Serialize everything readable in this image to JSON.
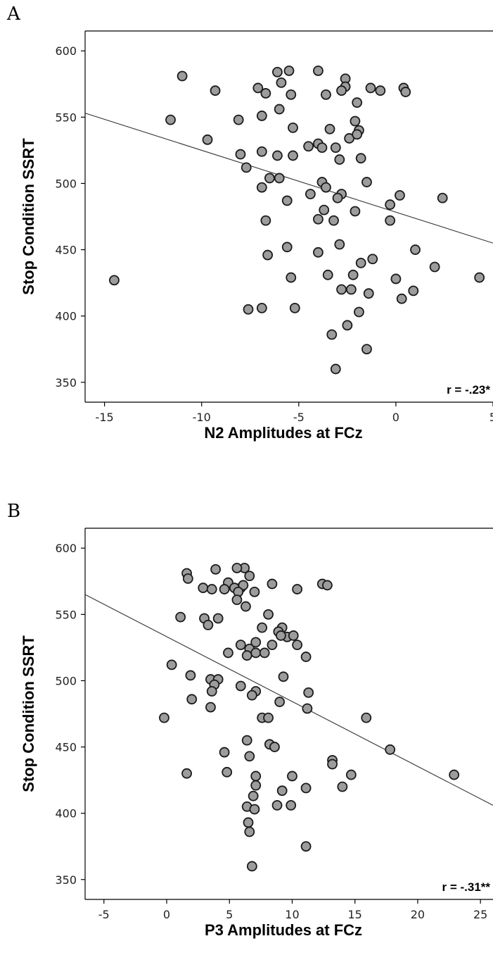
{
  "chart_data": [
    {
      "type": "scatter",
      "panel_label": "A",
      "title": "",
      "xlabel": "N2 Amplitudes at FCz",
      "ylabel": "Stop Condition SSRT",
      "xlim": [
        -16,
        5
      ],
      "ylim": [
        335,
        615
      ],
      "xticks": [
        -15,
        -10,
        -5,
        0,
        5
      ],
      "yticks": [
        350,
        400,
        450,
        500,
        550,
        600
      ],
      "grid": false,
      "annotation": "r = -.23*",
      "fit_line": {
        "x": [
          -16,
          5
        ],
        "y": [
          553,
          455
        ]
      },
      "points": [
        [
          -11,
          581
        ],
        [
          -9.3,
          570
        ],
        [
          -7.1,
          572
        ],
        [
          -6.7,
          568
        ],
        [
          -6.1,
          584
        ],
        [
          -5.5,
          585
        ],
        [
          -5.9,
          576
        ],
        [
          -5.4,
          567
        ],
        [
          -4,
          585
        ],
        [
          -3.6,
          567
        ],
        [
          -2.6,
          579
        ],
        [
          -2.6,
          573
        ],
        [
          -2.8,
          570
        ],
        [
          -1.3,
          572
        ],
        [
          -0.8,
          570
        ],
        [
          0.4,
          572
        ],
        [
          0.5,
          569
        ],
        [
          -11.6,
          548
        ],
        [
          -8.1,
          548
        ],
        [
          -6.9,
          551
        ],
        [
          -6,
          556
        ],
        [
          -5.3,
          542
        ],
        [
          -3.4,
          541
        ],
        [
          -2,
          561
        ],
        [
          -2.1,
          547
        ],
        [
          -1.9,
          540
        ],
        [
          -2.4,
          534
        ],
        [
          -2,
          537
        ],
        [
          -9.7,
          533
        ],
        [
          -8,
          522
        ],
        [
          -7.7,
          512
        ],
        [
          -6.9,
          524
        ],
        [
          -5.3,
          521
        ],
        [
          -6.1,
          521
        ],
        [
          -4.5,
          528
        ],
        [
          -4,
          530
        ],
        [
          -3.8,
          527
        ],
        [
          -3.1,
          527
        ],
        [
          -2.9,
          518
        ],
        [
          -1.8,
          519
        ],
        [
          -6.5,
          504
        ],
        [
          -6,
          504
        ],
        [
          -6.9,
          497
        ],
        [
          -3.8,
          501
        ],
        [
          -3.6,
          497
        ],
        [
          -1.5,
          501
        ],
        [
          -2.8,
          492
        ],
        [
          -3,
          489
        ],
        [
          -4.4,
          492
        ],
        [
          -5.6,
          487
        ],
        [
          0.2,
          491
        ],
        [
          2.4,
          489
        ],
        [
          -0.3,
          484
        ],
        [
          -6.7,
          472
        ],
        [
          -4,
          473
        ],
        [
          -3.2,
          472
        ],
        [
          -3.7,
          480
        ],
        [
          -2.1,
          479
        ],
        [
          -0.3,
          472
        ],
        [
          -14.5,
          427
        ],
        [
          -6.6,
          446
        ],
        [
          -5.6,
          452
        ],
        [
          -5.4,
          429
        ],
        [
          -4,
          448
        ],
        [
          -2.9,
          454
        ],
        [
          -3.5,
          431
        ],
        [
          -2.2,
          431
        ],
        [
          -1.8,
          440
        ],
        [
          -1.2,
          443
        ],
        [
          1,
          450
        ],
        [
          2,
          437
        ],
        [
          4.3,
          429
        ],
        [
          0,
          428
        ],
        [
          0.3,
          413
        ],
        [
          0.9,
          419
        ],
        [
          -2.8,
          420
        ],
        [
          -2.3,
          420
        ],
        [
          -1.4,
          417
        ],
        [
          -7.6,
          405
        ],
        [
          -6.9,
          406
        ],
        [
          -5.2,
          406
        ],
        [
          -1.9,
          403
        ],
        [
          -2.5,
          393
        ],
        [
          -3.3,
          386
        ],
        [
          -1.5,
          375
        ],
        [
          -3.1,
          360
        ]
      ]
    },
    {
      "type": "scatter",
      "panel_label": "B",
      "title": "",
      "xlabel": "P3 Amplitudes at FCz",
      "ylabel": "Stop Condition SSRT",
      "xlim": [
        -6.5,
        26
      ],
      "ylim": [
        335,
        615
      ],
      "xticks": [
        -5,
        0,
        5,
        10,
        15,
        20,
        25
      ],
      "yticks": [
        350,
        400,
        450,
        500,
        550,
        600
      ],
      "grid": false,
      "annotation": "r = -.31**",
      "fit_line": {
        "x": [
          -6.5,
          26
        ],
        "y": [
          565,
          406
        ]
      },
      "points": [
        [
          1.6,
          581
        ],
        [
          1.7,
          577
        ],
        [
          3.9,
          584
        ],
        [
          6.2,
          585
        ],
        [
          5.6,
          585
        ],
        [
          6.6,
          579
        ],
        [
          2.9,
          570
        ],
        [
          3.6,
          569
        ],
        [
          4.9,
          574
        ],
        [
          5.9,
          570
        ],
        [
          6.1,
          572
        ],
        [
          4.6,
          569
        ],
        [
          5.4,
          570
        ],
        [
          5.7,
          567
        ],
        [
          7,
          567
        ],
        [
          8.4,
          573
        ],
        [
          10.4,
          569
        ],
        [
          12.4,
          573
        ],
        [
          12.8,
          572
        ],
        [
          5.6,
          561
        ],
        [
          6.3,
          556
        ],
        [
          1.1,
          548
        ],
        [
          3,
          547
        ],
        [
          4.1,
          547
        ],
        [
          3.3,
          542
        ],
        [
          8.1,
          550
        ],
        [
          7.6,
          540
        ],
        [
          9.2,
          540
        ],
        [
          9.6,
          533
        ],
        [
          10.1,
          534
        ],
        [
          8.9,
          537
        ],
        [
          9.1,
          534
        ],
        [
          5.9,
          527
        ],
        [
          6.6,
          524
        ],
        [
          4.9,
          521
        ],
        [
          6.4,
          519
        ],
        [
          7.1,
          521
        ],
        [
          7.8,
          521
        ],
        [
          8.4,
          527
        ],
        [
          10.4,
          527
        ],
        [
          7.1,
          529
        ],
        [
          11.1,
          518
        ],
        [
          0.4,
          512
        ],
        [
          1.9,
          504
        ],
        [
          3.5,
          501
        ],
        [
          4.1,
          501
        ],
        [
          3.8,
          497
        ],
        [
          3.6,
          492
        ],
        [
          5.9,
          496
        ],
        [
          7.1,
          492
        ],
        [
          6.8,
          489
        ],
        [
          9.3,
          503
        ],
        [
          11.3,
          491
        ],
        [
          2,
          486
        ],
        [
          3.5,
          480
        ],
        [
          7.6,
          472
        ],
        [
          8.1,
          472
        ],
        [
          9,
          484
        ],
        [
          11.2,
          479
        ],
        [
          -0.2,
          472
        ],
        [
          15.9,
          472
        ],
        [
          6.4,
          455
        ],
        [
          6.6,
          443
        ],
        [
          8.2,
          452
        ],
        [
          8.6,
          450
        ],
        [
          4.6,
          446
        ],
        [
          17.8,
          448
        ],
        [
          1.6,
          430
        ],
        [
          4.8,
          431
        ],
        [
          7.1,
          428
        ],
        [
          7.1,
          421
        ],
        [
          10,
          428
        ],
        [
          13.2,
          440
        ],
        [
          13.2,
          437
        ],
        [
          14.7,
          429
        ],
        [
          14,
          420
        ],
        [
          11.1,
          419
        ],
        [
          22.9,
          429
        ],
        [
          6.9,
          413
        ],
        [
          6.4,
          405
        ],
        [
          7,
          403
        ],
        [
          8.8,
          406
        ],
        [
          9.9,
          406
        ],
        [
          9.2,
          417
        ],
        [
          6.5,
          393
        ],
        [
          6.6,
          386
        ],
        [
          11.1,
          375
        ],
        [
          6.8,
          360
        ]
      ]
    }
  ]
}
